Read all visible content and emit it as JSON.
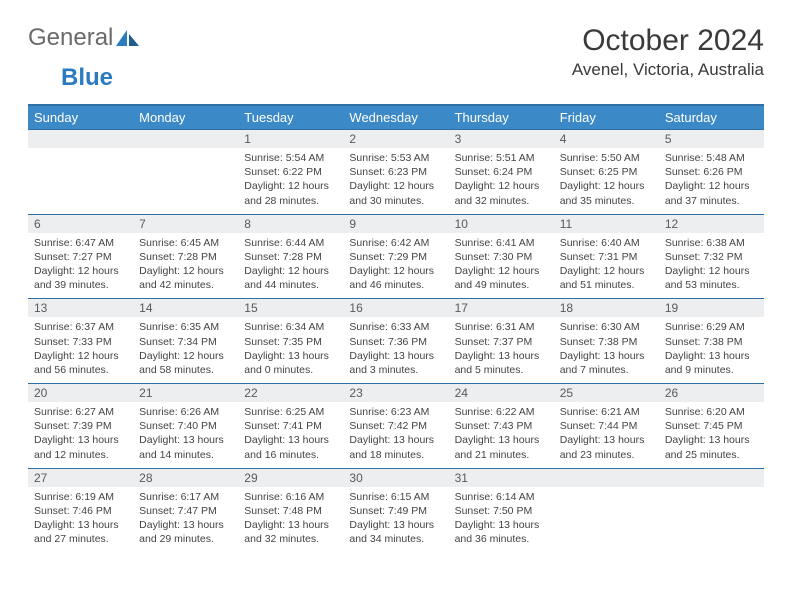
{
  "logo": {
    "text_general": "General",
    "text_blue": "Blue"
  },
  "title": "October 2024",
  "location": "Avenel, Victoria, Australia",
  "weekdays": [
    "Sunday",
    "Monday",
    "Tuesday",
    "Wednesday",
    "Thursday",
    "Friday",
    "Saturday"
  ],
  "colors": {
    "header_bg": "#3b89c7",
    "header_border": "#2f6fa3",
    "daynum_bg": "#eceef0",
    "text": "#3a3a3a",
    "logo_gray": "#6a6a6a",
    "logo_blue": "#2a7bbf"
  },
  "weeks": [
    [
      null,
      null,
      {
        "n": "1",
        "sr": "5:54 AM",
        "ss": "6:22 PM",
        "dl": "12 hours and 28 minutes."
      },
      {
        "n": "2",
        "sr": "5:53 AM",
        "ss": "6:23 PM",
        "dl": "12 hours and 30 minutes."
      },
      {
        "n": "3",
        "sr": "5:51 AM",
        "ss": "6:24 PM",
        "dl": "12 hours and 32 minutes."
      },
      {
        "n": "4",
        "sr": "5:50 AM",
        "ss": "6:25 PM",
        "dl": "12 hours and 35 minutes."
      },
      {
        "n": "5",
        "sr": "5:48 AM",
        "ss": "6:26 PM",
        "dl": "12 hours and 37 minutes."
      }
    ],
    [
      {
        "n": "6",
        "sr": "6:47 AM",
        "ss": "7:27 PM",
        "dl": "12 hours and 39 minutes."
      },
      {
        "n": "7",
        "sr": "6:45 AM",
        "ss": "7:28 PM",
        "dl": "12 hours and 42 minutes."
      },
      {
        "n": "8",
        "sr": "6:44 AM",
        "ss": "7:28 PM",
        "dl": "12 hours and 44 minutes."
      },
      {
        "n": "9",
        "sr": "6:42 AM",
        "ss": "7:29 PM",
        "dl": "12 hours and 46 minutes."
      },
      {
        "n": "10",
        "sr": "6:41 AM",
        "ss": "7:30 PM",
        "dl": "12 hours and 49 minutes."
      },
      {
        "n": "11",
        "sr": "6:40 AM",
        "ss": "7:31 PM",
        "dl": "12 hours and 51 minutes."
      },
      {
        "n": "12",
        "sr": "6:38 AM",
        "ss": "7:32 PM",
        "dl": "12 hours and 53 minutes."
      }
    ],
    [
      {
        "n": "13",
        "sr": "6:37 AM",
        "ss": "7:33 PM",
        "dl": "12 hours and 56 minutes."
      },
      {
        "n": "14",
        "sr": "6:35 AM",
        "ss": "7:34 PM",
        "dl": "12 hours and 58 minutes."
      },
      {
        "n": "15",
        "sr": "6:34 AM",
        "ss": "7:35 PM",
        "dl": "13 hours and 0 minutes."
      },
      {
        "n": "16",
        "sr": "6:33 AM",
        "ss": "7:36 PM",
        "dl": "13 hours and 3 minutes."
      },
      {
        "n": "17",
        "sr": "6:31 AM",
        "ss": "7:37 PM",
        "dl": "13 hours and 5 minutes."
      },
      {
        "n": "18",
        "sr": "6:30 AM",
        "ss": "7:38 PM",
        "dl": "13 hours and 7 minutes."
      },
      {
        "n": "19",
        "sr": "6:29 AM",
        "ss": "7:38 PM",
        "dl": "13 hours and 9 minutes."
      }
    ],
    [
      {
        "n": "20",
        "sr": "6:27 AM",
        "ss": "7:39 PM",
        "dl": "13 hours and 12 minutes."
      },
      {
        "n": "21",
        "sr": "6:26 AM",
        "ss": "7:40 PM",
        "dl": "13 hours and 14 minutes."
      },
      {
        "n": "22",
        "sr": "6:25 AM",
        "ss": "7:41 PM",
        "dl": "13 hours and 16 minutes."
      },
      {
        "n": "23",
        "sr": "6:23 AM",
        "ss": "7:42 PM",
        "dl": "13 hours and 18 minutes."
      },
      {
        "n": "24",
        "sr": "6:22 AM",
        "ss": "7:43 PM",
        "dl": "13 hours and 21 minutes."
      },
      {
        "n": "25",
        "sr": "6:21 AM",
        "ss": "7:44 PM",
        "dl": "13 hours and 23 minutes."
      },
      {
        "n": "26",
        "sr": "6:20 AM",
        "ss": "7:45 PM",
        "dl": "13 hours and 25 minutes."
      }
    ],
    [
      {
        "n": "27",
        "sr": "6:19 AM",
        "ss": "7:46 PM",
        "dl": "13 hours and 27 minutes."
      },
      {
        "n": "28",
        "sr": "6:17 AM",
        "ss": "7:47 PM",
        "dl": "13 hours and 29 minutes."
      },
      {
        "n": "29",
        "sr": "6:16 AM",
        "ss": "7:48 PM",
        "dl": "13 hours and 32 minutes."
      },
      {
        "n": "30",
        "sr": "6:15 AM",
        "ss": "7:49 PM",
        "dl": "13 hours and 34 minutes."
      },
      {
        "n": "31",
        "sr": "6:14 AM",
        "ss": "7:50 PM",
        "dl": "13 hours and 36 minutes."
      },
      null,
      null
    ]
  ],
  "labels": {
    "sunrise": "Sunrise:",
    "sunset": "Sunset:",
    "daylight": "Daylight:"
  }
}
